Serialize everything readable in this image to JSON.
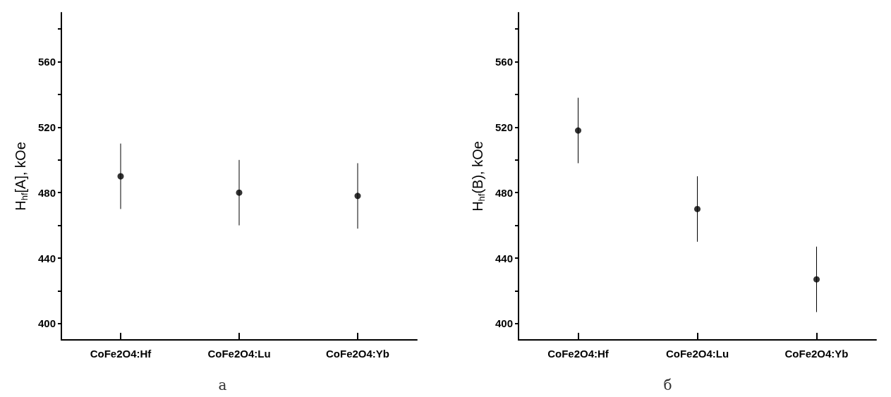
{
  "chart_data": [
    {
      "type": "scatter",
      "title": "а",
      "ylabel": "H$_{hf}$[A], kOe",
      "categories": [
        "CoFe2O4:Hf",
        "CoFe2O4:Lu",
        "CoFe2O4:Yb"
      ],
      "series": [
        {
          "color": "#000000",
          "values": [
            490,
            480,
            478
          ],
          "errors": [
            20,
            20,
            20
          ]
        }
      ],
      "ylim": [
        390,
        590
      ],
      "yticks": [
        400,
        {
          "value": 420,
          "label": null
        },
        440,
        {
          "value": 460,
          "label": null
        },
        480,
        {
          "value": 500,
          "label": null
        },
        520,
        {
          "value": 540,
          "label": null
        },
        560,
        {
          "value": 580,
          "label": null
        }
      ],
      "marker": "circle",
      "grid": false
    },
    {
      "type": "scatter",
      "title": "б",
      "ylabel": "H$_{hf}$(B), kOe",
      "categories": [
        "CoFe2O4:Hf",
        "CoFe2O4:Lu",
        "CoFe2O4:Yb"
      ],
      "series": [
        {
          "color": "#000000",
          "values": [
            518,
            470,
            427
          ],
          "errors": [
            20,
            20,
            20
          ]
        }
      ],
      "ylim": [
        390,
        590
      ],
      "yticks": [
        400,
        {
          "value": 420,
          "label": null
        },
        440,
        {
          "value": 460,
          "label": null
        },
        480,
        {
          "value": 500,
          "label": null
        },
        520,
        {
          "value": 540,
          "label": null
        },
        560,
        {
          "value": 580,
          "label": null
        }
      ],
      "marker": "circle",
      "grid": false
    }
  ]
}
